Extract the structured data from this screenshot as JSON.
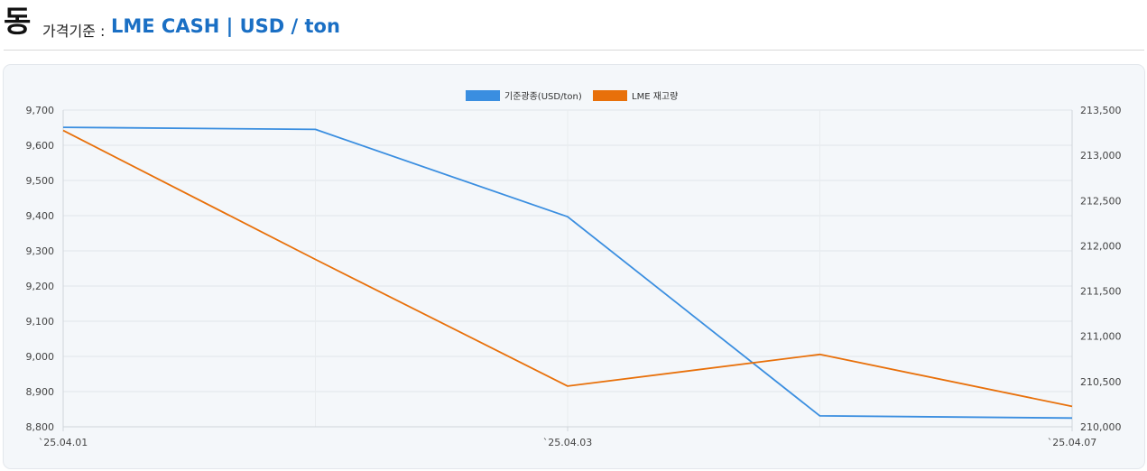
{
  "header": {
    "metal": "동",
    "basis_label": "가격기준 :",
    "basis_value": "LME CASH | USD / ton"
  },
  "colors": {
    "price": "#3a8ee0",
    "stock": "#e8700a",
    "accent": "#1a6fc4"
  },
  "chart_data": {
    "type": "line",
    "dual_axis": true,
    "grid": true,
    "legend_position": "top-center",
    "categories": [
      "`25.04.01",
      "",
      "`25.04.03",
      "",
      "`25.04.07"
    ],
    "x_tick_labels": [
      "`25.04.01",
      "`25.04.03",
      "`25.04.07"
    ],
    "y_left": {
      "min": 8800,
      "max": 9700,
      "ticks": [
        "9,700",
        "9,600",
        "9,500",
        "9,400",
        "9,300",
        "9,200",
        "9,100",
        "9,000",
        "8,900",
        "8,800"
      ]
    },
    "y_right": {
      "min": 210000,
      "max": 213500,
      "ticks": [
        "213,500",
        "213,000",
        "212,500",
        "212,000",
        "211,500",
        "211,000",
        "210,500",
        "210,000"
      ]
    },
    "series": [
      {
        "name": "기준광종(USD/ton)",
        "axis": "left",
        "color": "#3a8ee0",
        "values": [
          9651,
          9645,
          9397,
          8831,
          8825
        ]
      },
      {
        "name": "LME 재고량",
        "axis": "right",
        "color": "#e8700a",
        "values": [
          213275,
          211850,
          210450,
          210800,
          210225
        ]
      }
    ]
  }
}
